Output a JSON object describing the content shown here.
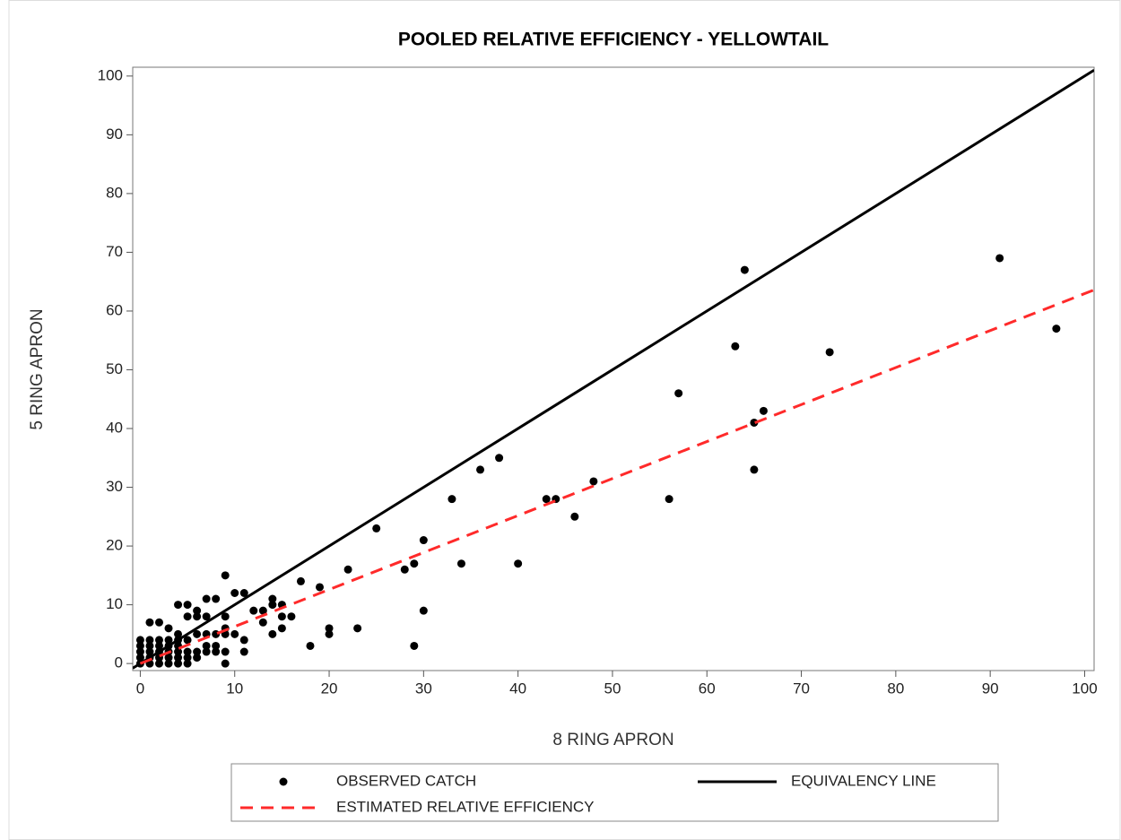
{
  "chart_data": {
    "type": "scatter",
    "title": "POOLED RELATIVE EFFICIENCY - YELLOWTAIL",
    "xlabel": "8 RING APRON",
    "ylabel": "5 RING APRON",
    "xlim": [
      -0.8,
      101
    ],
    "ylim": [
      -1.2,
      101.5
    ],
    "xticks": [
      0,
      10,
      20,
      30,
      40,
      50,
      60,
      70,
      80,
      90,
      100
    ],
    "yticks": [
      0,
      10,
      20,
      30,
      40,
      50,
      60,
      70,
      80,
      90,
      100
    ],
    "grid": false,
    "legend": "bottom",
    "series": [
      {
        "name": "OBSERVED CATCH",
        "style": "marker",
        "color": "#000000",
        "x": [
          0,
          0,
          0,
          0,
          0,
          1,
          1,
          1,
          1,
          1,
          1,
          2,
          2,
          2,
          2,
          2,
          2,
          3,
          3,
          3,
          3,
          3,
          3,
          4,
          4,
          4,
          4,
          4,
          4,
          4,
          5,
          5,
          5,
          5,
          5,
          5,
          6,
          6,
          6,
          6,
          6,
          7,
          7,
          7,
          7,
          7,
          8,
          8,
          8,
          8,
          9,
          9,
          9,
          9,
          9,
          9,
          10,
          10,
          11,
          11,
          11,
          12,
          13,
          13,
          14,
          14,
          14,
          15,
          15,
          15,
          16,
          17,
          18,
          19,
          20,
          20,
          22,
          23,
          25,
          28,
          29,
          29,
          30,
          30,
          33,
          34,
          36,
          38,
          40,
          43,
          44,
          46,
          48,
          56,
          57,
          63,
          64,
          65,
          65,
          66,
          73,
          91,
          97
        ],
        "values": [
          0,
          1,
          2,
          3,
          4,
          0,
          1,
          2,
          3,
          4,
          7,
          0,
          1,
          2,
          3,
          4,
          7,
          0,
          1,
          2,
          3,
          4,
          6,
          0,
          1,
          2,
          3,
          4,
          5,
          10,
          0,
          1,
          2,
          4,
          8,
          10,
          1,
          2,
          5,
          8,
          9,
          2,
          3,
          5,
          8,
          11,
          2,
          3,
          5,
          11,
          0,
          2,
          5,
          6,
          8,
          15,
          5,
          12,
          2,
          4,
          12,
          9,
          7,
          9,
          5,
          10,
          11,
          6,
          8,
          10,
          8,
          14,
          3,
          13,
          5,
          6,
          16,
          6,
          23,
          16,
          3,
          17,
          9,
          21,
          28,
          17,
          33,
          35,
          17,
          28,
          28,
          25,
          31,
          28,
          46,
          54,
          67,
          33,
          41,
          43,
          53,
          69,
          57
        ]
      },
      {
        "name": "EQUIVALENCY LINE",
        "style": "solid",
        "color": "#000000",
        "x": [
          -0.8,
          101
        ],
        "values": [
          -0.8,
          101
        ]
      },
      {
        "name": "ESTIMATED RELATIVE EFFICIENCY",
        "style": "dashed",
        "color": "#ff2a2a",
        "x": [
          0,
          101
        ],
        "values": [
          0,
          63.6
        ]
      }
    ]
  }
}
